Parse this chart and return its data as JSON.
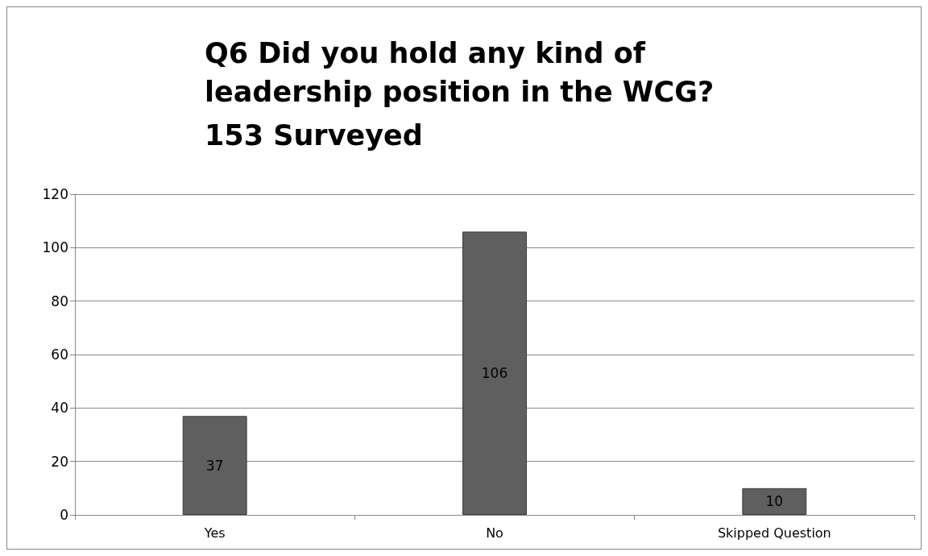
{
  "chart_data": {
    "type": "bar",
    "title": "Q6 Did you hold any kind of leadership position in the WCG?",
    "subtitle": "153 Surveyed",
    "categories": [
      "Yes",
      "No",
      "Skipped Question"
    ],
    "values": [
      37,
      106,
      10
    ],
    "color": "#5f5f5f",
    "ylim": [
      0,
      120
    ],
    "yticks": [
      0,
      20,
      40,
      60,
      80,
      100,
      120
    ],
    "grid": "y",
    "data_labels": true
  }
}
